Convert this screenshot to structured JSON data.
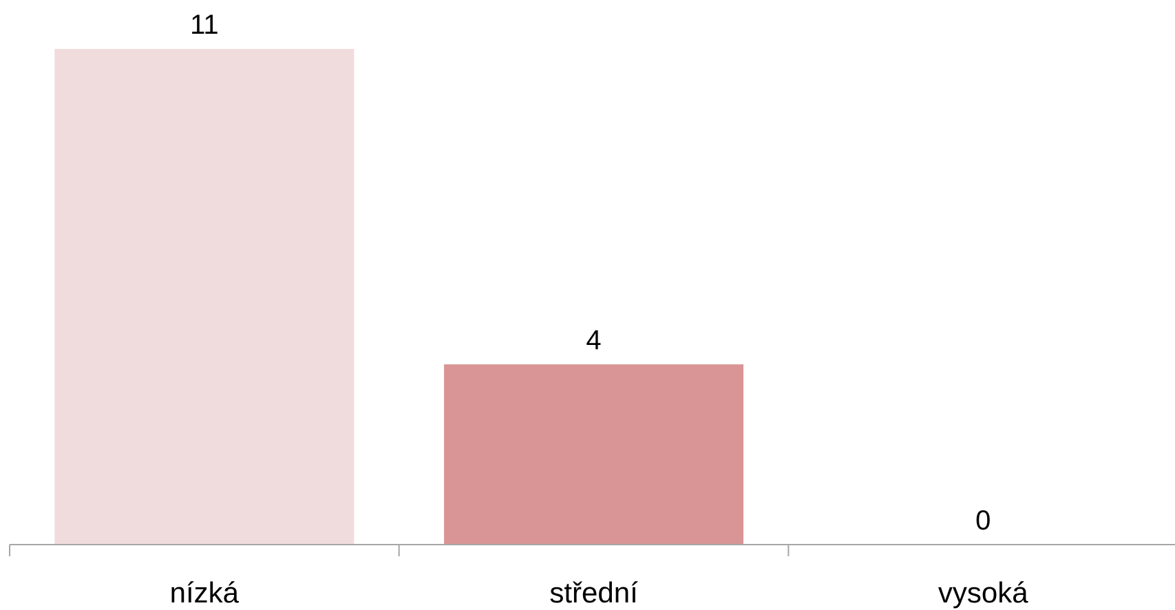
{
  "chart_data": {
    "type": "bar",
    "categories": [
      "nízká",
      "střední",
      "vysoká"
    ],
    "values": [
      11,
      4,
      0
    ],
    "data_labels": [
      "11",
      "4",
      "0"
    ],
    "title": "",
    "xlabel": "",
    "ylabel": "",
    "ylim": [
      0,
      11
    ],
    "grid": false,
    "legend": "none",
    "colors": [
      "#F1DCDD",
      "#D99595",
      "#C0504D"
    ],
    "axis_color": "#A6A6A6"
  }
}
